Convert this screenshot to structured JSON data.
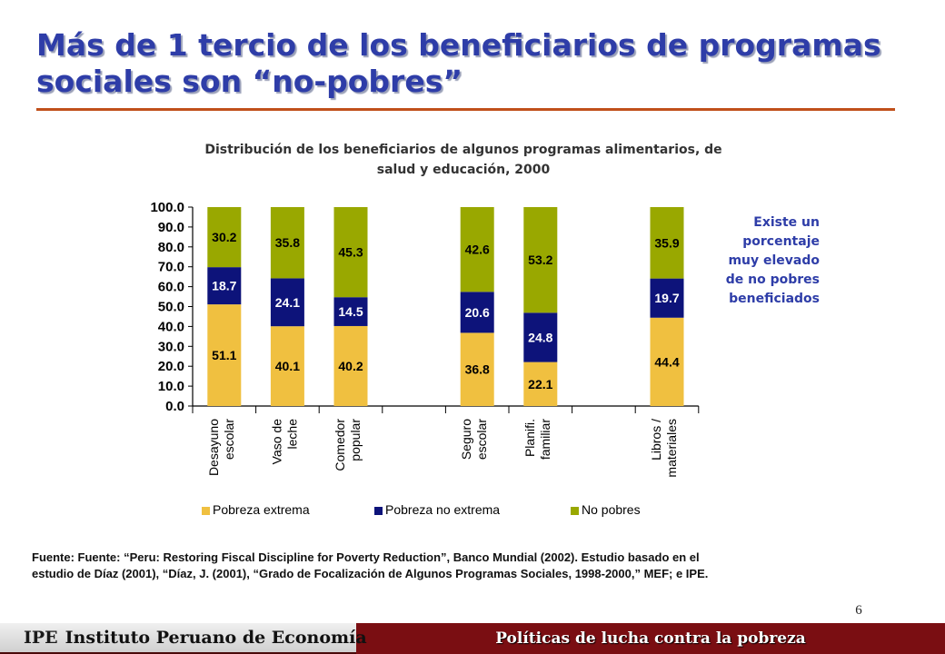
{
  "slide": {
    "title_lines": [
      "Más de 1 tercio de los beneficiarios de programas",
      "sociales son “no-pobres”"
    ],
    "callout_lines": [
      "Existe un",
      "porcentaje",
      "muy elevado",
      "de no pobres",
      "beneficiados"
    ],
    "source_lines": [
      "Fuente: Fuente: “Peru: Restoring Fiscal Discipline for Poverty Reduction”, Banco Mundial (2002). Estudio basado en el",
      "estudio de Díaz (2001), “Díaz, J. (2001), “Grado de Focalización de Algunos Programas Sociales, 1998-2000,” MEF; e IPE."
    ],
    "page_number": "6"
  },
  "footer": {
    "org_abbrev": "IPE",
    "org_name": "Instituto Peruano de Economía",
    "section": "Políticas de lucha contra la pobreza"
  },
  "chart_data": {
    "type": "bar",
    "stacked": true,
    "title_lines": [
      "Distribución de los beneficiarios de algunos programas alimentarios, de",
      "salud y educación, 2000"
    ],
    "categories": [
      [
        "Desayuno",
        "escolar"
      ],
      [
        "Vaso de",
        "leche"
      ],
      [
        "Comedor",
        "popular"
      ],
      null,
      [
        "Seguro",
        "escolar"
      ],
      [
        "Planifi.",
        "familiar"
      ],
      null,
      [
        "Libros /",
        "materiales"
      ]
    ],
    "series": [
      {
        "name": "Pobreza extrema",
        "color": "#F0C040",
        "label_color": "#000000",
        "values": [
          51.1,
          40.1,
          40.2,
          null,
          36.8,
          22.1,
          null,
          44.4
        ]
      },
      {
        "name": "Pobreza no extrema",
        "color": "#0D137A",
        "label_color": "#FFFFFF",
        "values": [
          18.7,
          24.1,
          14.5,
          null,
          20.6,
          24.8,
          null,
          19.7
        ]
      },
      {
        "name": "No pobres",
        "color": "#99A800",
        "label_color": "#000000",
        "values": [
          30.2,
          35.8,
          45.3,
          null,
          42.6,
          53.2,
          null,
          35.9
        ]
      }
    ],
    "ylim": [
      0,
      100
    ],
    "yticks": [
      "0.0",
      "10.0",
      "20.0",
      "30.0",
      "40.0",
      "50.0",
      "60.0",
      "70.0",
      "80.0",
      "90.0",
      "100.0"
    ],
    "legend_position": "bottom",
    "grid": false
  }
}
